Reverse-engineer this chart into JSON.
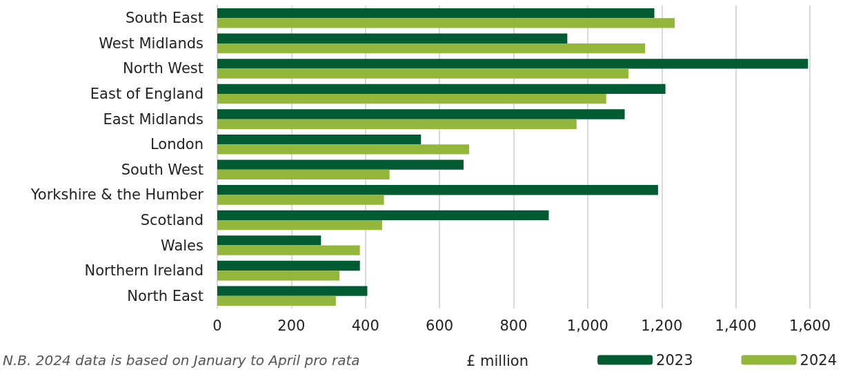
{
  "chart_data": {
    "type": "bar",
    "orientation": "horizontal",
    "xlabel": "£ million",
    "categories": [
      "South East",
      "West Midlands",
      "North West",
      "East of England",
      "East Midlands",
      "London",
      "South West",
      "Yorkshire & the Humber",
      "Scotland",
      "Wales",
      "Northern Ireland",
      "North East"
    ],
    "series": [
      {
        "name": "2023",
        "color": "#005a32",
        "values": [
          1180,
          945,
          1595,
          1210,
          1100,
          550,
          665,
          1190,
          895,
          280,
          385,
          405
        ]
      },
      {
        "name": "2024",
        "color": "#93b73a",
        "values": [
          1235,
          1155,
          1110,
          1050,
          970,
          680,
          465,
          450,
          445,
          385,
          330,
          320
        ]
      }
    ],
    "xlim": [
      0,
      1600
    ],
    "xticks": [
      0,
      200,
      400,
      600,
      800,
      {
        "value": 1000,
        "label": "1,000"
      },
      {
        "value": 1200,
        "label": "1,200"
      },
      {
        "value": 1400,
        "label": "1,400"
      },
      {
        "value": 1600,
        "label": "1,600"
      }
    ],
    "grid": "x",
    "legend": "bottom right",
    "annotations": [
      "N.B. 2024 data is based on January to April pro rata"
    ]
  }
}
